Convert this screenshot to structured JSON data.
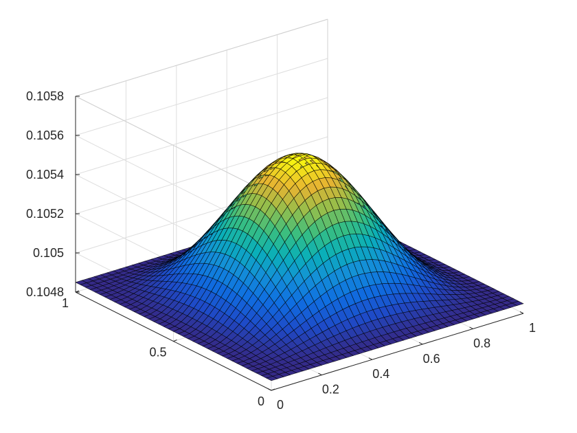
{
  "chart_data": {
    "type": "surface",
    "title": "",
    "xlabel": "",
    "ylabel": "",
    "zlabel": "",
    "xlim": [
      0,
      1
    ],
    "ylim": [
      0,
      1
    ],
    "zlim": [
      0.1048,
      0.1058
    ],
    "grid": true,
    "colormap": "parula",
    "edge_color": "#000000",
    "x_ticks": [
      {
        "value": 0,
        "label": "0"
      },
      {
        "value": 0.2,
        "label": "0.2"
      },
      {
        "value": 0.4,
        "label": "0.4"
      },
      {
        "value": 0.6,
        "label": "0.6"
      },
      {
        "value": 0.8,
        "label": "0.8"
      },
      {
        "value": 1,
        "label": "1"
      }
    ],
    "y_ticks": [
      {
        "value": 0,
        "label": "0"
      },
      {
        "value": 0.5,
        "label": "0.5"
      },
      {
        "value": 1,
        "label": "1"
      }
    ],
    "z_ticks": [
      {
        "value": 0.1048,
        "label": "0.1048"
      },
      {
        "value": 0.105,
        "label": "0.105"
      },
      {
        "value": 0.1052,
        "label": "0.1052"
      },
      {
        "value": 0.1054,
        "label": "0.1054"
      },
      {
        "value": 0.1056,
        "label": "0.1056"
      },
      {
        "value": 0.1058,
        "label": "0.1058"
      }
    ],
    "surface": {
      "formula": "z = 0.10485 + 0.000175 * (1 - cos(2*pi*x)) * (1 - cos(2*pi*y))",
      "z_min": 0.10485,
      "z_max": 0.10555,
      "grid_n": 41
    }
  }
}
